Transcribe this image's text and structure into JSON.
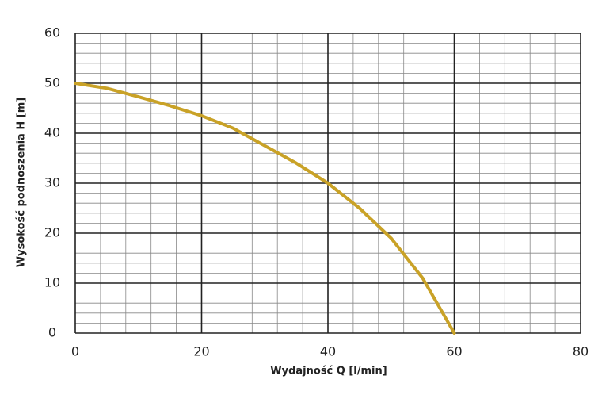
{
  "chart_data": {
    "type": "line",
    "x_label": "Wydajność Q [l/min]",
    "y_label": "Wysokość podnoszenia H [m]",
    "series": [
      {
        "color": "#c9a227",
        "x": [
          0,
          5,
          10,
          15,
          20,
          25,
          30,
          35,
          40,
          45,
          50,
          55,
          60
        ],
        "values": [
          50,
          49,
          47.3,
          45.5,
          43.5,
          41,
          37.5,
          34,
          30,
          25,
          19,
          11,
          0
        ]
      }
    ],
    "xlim": [
      0,
      80
    ],
    "ylim": [
      0,
      60
    ],
    "xticks": [
      0,
      20,
      40,
      60,
      80
    ],
    "yticks": [
      0,
      10,
      20,
      30,
      40,
      50,
      60
    ],
    "minor_xticks": [
      0,
      4,
      8,
      12,
      16,
      20,
      24,
      28,
      32,
      36,
      40,
      44,
      48,
      52,
      56,
      60,
      64,
      68,
      72,
      76,
      80
    ],
    "minor_yticks": [
      0,
      2,
      4,
      6,
      8,
      10,
      12,
      14,
      16,
      18,
      20,
      22,
      24,
      26,
      28,
      30,
      32,
      34,
      36,
      38,
      40,
      42,
      44,
      46,
      48,
      50,
      52,
      54,
      56,
      58,
      60
    ],
    "grid": true
  }
}
